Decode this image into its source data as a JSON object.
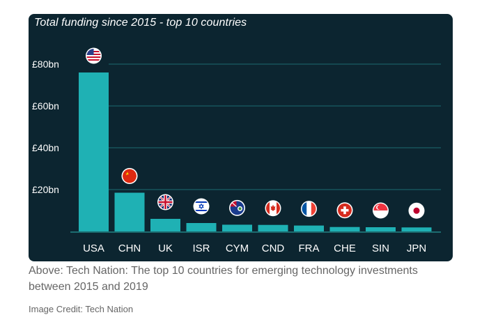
{
  "chart_data": {
    "type": "bar",
    "title": "Total funding since 2015 - top 10 countries",
    "categories": [
      "USA",
      "CHN",
      "UK",
      "ISR",
      "CYM",
      "CND",
      "FRA",
      "CHE",
      "SIN",
      "JPN"
    ],
    "values": [
      76,
      18.5,
      6,
      4,
      3.2,
      3.1,
      2.8,
      2.1,
      2.0,
      1.9
    ],
    "unit": "bn (GBP)",
    "yticks": [
      {
        "value": 20,
        "label": "£20bn"
      },
      {
        "value": 40,
        "label": "£40bn"
      },
      {
        "value": 60,
        "label": "£60bn"
      },
      {
        "value": 80,
        "label": "£80bn"
      }
    ],
    "ylim": [
      0,
      80
    ],
    "grid": true,
    "flags": [
      "us-flag-icon",
      "cn-flag-icon",
      "uk-flag-icon",
      "il-flag-icon",
      "ky-flag-icon",
      "ca-flag-icon",
      "fr-flag-icon",
      "ch-flag-icon",
      "sg-flag-icon",
      "jp-flag-icon"
    ],
    "colors": {
      "background": "#0c2530",
      "bar": "#1fb1b4",
      "grid": "#1d6c70",
      "text": "#ffffff"
    }
  },
  "caption": "Above: Tech Nation: The top 10 countries for emerging technology investments between 2015 and 2019",
  "credit": "Image Credit: Tech Nation"
}
